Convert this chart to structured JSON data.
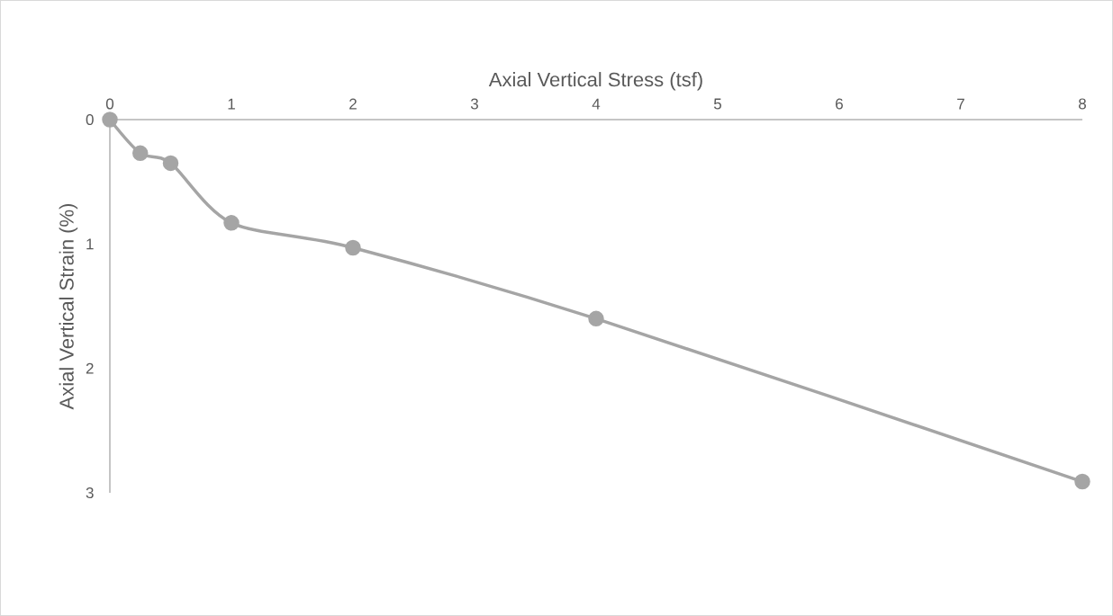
{
  "chart_data": {
    "type": "line",
    "xlabel": "Axial Vertical Stress (tsf)",
    "ylabel": "Axial Vertical Strain (%)",
    "x": [
      0,
      0.25,
      0.5,
      1,
      2,
      4,
      8
    ],
    "series": [
      {
        "color": "#a5a5a5",
        "values": [
          0,
          0.27,
          0.35,
          0.83,
          1.03,
          1.6,
          2.91
        ]
      }
    ],
    "xlim": [
      0,
      8
    ],
    "xticks": [
      0,
      1,
      2,
      3,
      4,
      5,
      6,
      7,
      8
    ],
    "ylim": [
      3,
      0
    ],
    "yticks": [
      0,
      1,
      2,
      3
    ],
    "marker": "circle",
    "line_style": "solid",
    "grid": false
  }
}
